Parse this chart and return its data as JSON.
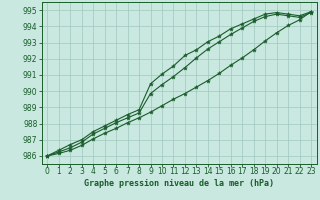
{
  "title": "Graphe pression niveau de la mer (hPa)",
  "background_color": "#c8e8e0",
  "grid_color": "#a0c8c0",
  "line_color": "#1a5c2a",
  "xlim": [
    -0.5,
    23.5
  ],
  "ylim": [
    985.5,
    995.5
  ],
  "yticks": [
    986,
    987,
    988,
    989,
    990,
    991,
    992,
    993,
    994,
    995
  ],
  "xticks": [
    0,
    1,
    2,
    3,
    4,
    5,
    6,
    7,
    8,
    9,
    10,
    11,
    12,
    13,
    14,
    15,
    16,
    17,
    18,
    19,
    20,
    21,
    22,
    23
  ],
  "series1_x": [
    0,
    1,
    2,
    3,
    4,
    5,
    6,
    7,
    8,
    9,
    10,
    11,
    12,
    13,
    14,
    15,
    16,
    17,
    18,
    19,
    20,
    21,
    22,
    23
  ],
  "series1_y": [
    986.0,
    986.35,
    986.7,
    987.0,
    987.5,
    987.85,
    988.2,
    988.55,
    988.85,
    990.45,
    991.05,
    991.55,
    992.2,
    992.55,
    993.05,
    993.4,
    993.85,
    994.15,
    994.45,
    994.75,
    994.85,
    994.75,
    994.65,
    994.9
  ],
  "series2_x": [
    0,
    1,
    2,
    3,
    4,
    5,
    6,
    7,
    8,
    9,
    10,
    11,
    12,
    13,
    14,
    15,
    16,
    17,
    18,
    19,
    20,
    21,
    22,
    23
  ],
  "series2_y": [
    986.0,
    986.25,
    986.5,
    986.85,
    987.35,
    987.7,
    988.05,
    988.35,
    988.65,
    989.85,
    990.4,
    990.9,
    991.45,
    992.05,
    992.6,
    993.05,
    993.5,
    993.9,
    994.3,
    994.6,
    994.75,
    994.65,
    994.55,
    994.85
  ],
  "series3_x": [
    0,
    1,
    2,
    3,
    4,
    5,
    6,
    7,
    8,
    9,
    10,
    11,
    12,
    13,
    14,
    15,
    16,
    17,
    18,
    19,
    20,
    21,
    22,
    23
  ],
  "series3_y": [
    986.0,
    986.15,
    986.35,
    986.65,
    987.05,
    987.4,
    987.7,
    988.05,
    988.35,
    988.7,
    989.1,
    989.5,
    989.85,
    990.25,
    990.65,
    991.1,
    991.6,
    992.05,
    992.55,
    993.1,
    993.6,
    994.05,
    994.4,
    994.9
  ]
}
